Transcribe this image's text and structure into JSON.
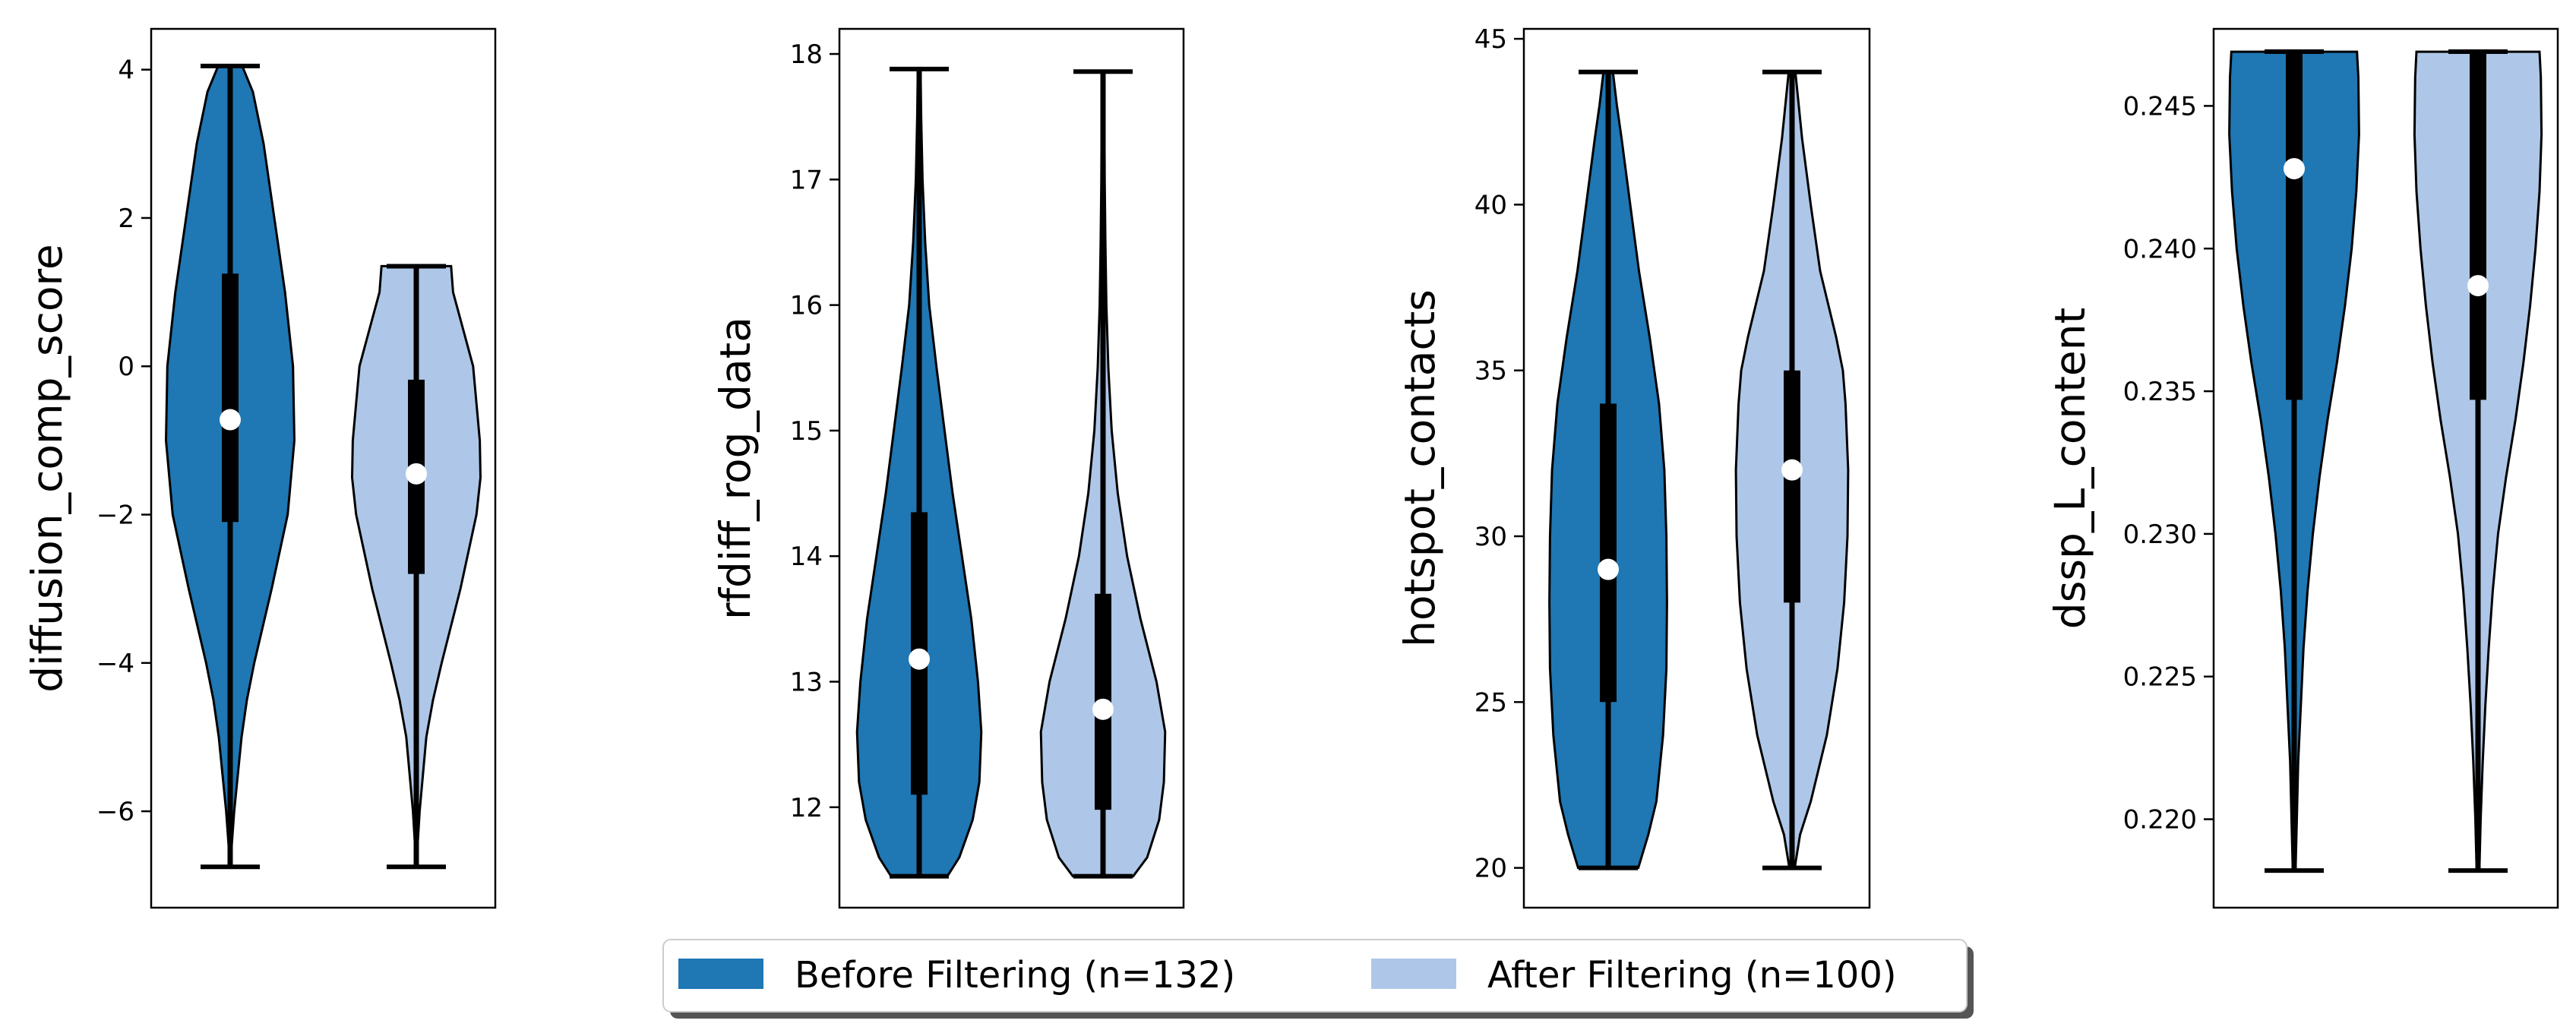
{
  "chart_data": {
    "type": "violin",
    "series_styles": [
      {
        "label": "Before Filtering (n=132)",
        "color": "#1f77b4"
      },
      {
        "label": "After Filtering (n=100)",
        "color": "#aec7e8"
      }
    ],
    "legend": {
      "placement": "bottom-center",
      "entries": [
        "Before Filtering (n=132)",
        "After Filtering (n=100)"
      ]
    },
    "panels": [
      {
        "ylabel": "diffusion_comp_score",
        "ylim": [
          -7.3,
          4.55
        ],
        "yticks": [
          4,
          2,
          0,
          -2,
          -4,
          -6
        ],
        "tick_labels": [
          "4",
          "2",
          "0",
          "−2",
          "−4",
          "−6"
        ],
        "violins": [
          {
            "min": -6.75,
            "max": 4.05,
            "q1": -2.1,
            "q3": 1.25,
            "median": -0.72,
            "profile": [
              [
                -6.75,
                0.0
              ],
              [
                -6.0,
                0.06
              ],
              [
                -5.0,
                0.17
              ],
              [
                -4.5,
                0.25
              ],
              [
                -4.0,
                0.36
              ],
              [
                -3.0,
                0.62
              ],
              [
                -2.0,
                0.86
              ],
              [
                -1.0,
                0.96
              ],
              [
                0.0,
                0.94
              ],
              [
                1.0,
                0.82
              ],
              [
                2.0,
                0.66
              ],
              [
                3.0,
                0.5
              ],
              [
                3.7,
                0.34
              ],
              [
                4.05,
                0.18
              ]
            ]
          },
          {
            "min": -6.75,
            "max": 1.35,
            "q1": -2.8,
            "q3": -0.18,
            "median": -1.45,
            "profile": [
              [
                -6.75,
                0.0
              ],
              [
                -6.0,
                0.05
              ],
              [
                -5.0,
                0.15
              ],
              [
                -4.5,
                0.25
              ],
              [
                -4.0,
                0.38
              ],
              [
                -3.0,
                0.66
              ],
              [
                -2.0,
                0.9
              ],
              [
                -1.5,
                0.96
              ],
              [
                -1.0,
                0.95
              ],
              [
                0.0,
                0.85
              ],
              [
                0.5,
                0.7
              ],
              [
                1.0,
                0.55
              ],
              [
                1.35,
                0.52
              ]
            ]
          }
        ]
      },
      {
        "ylabel": "rfdiff_rog_data",
        "ylim": [
          11.2,
          18.2
        ],
        "yticks": [
          18,
          17,
          16,
          15,
          14,
          13,
          12
        ],
        "tick_labels": [
          "18",
          "17",
          "16",
          "15",
          "14",
          "13",
          "12"
        ],
        "violins": [
          {
            "min": 11.45,
            "max": 17.88,
            "q1": 12.1,
            "q3": 14.35,
            "median": 13.18,
            "profile": [
              [
                11.45,
                0.42
              ],
              [
                11.6,
                0.6
              ],
              [
                11.9,
                0.8
              ],
              [
                12.2,
                0.9
              ],
              [
                12.6,
                0.93
              ],
              [
                13.0,
                0.88
              ],
              [
                13.5,
                0.78
              ],
              [
                14.0,
                0.64
              ],
              [
                14.5,
                0.5
              ],
              [
                15.0,
                0.38
              ],
              [
                15.5,
                0.26
              ],
              [
                16.0,
                0.15
              ],
              [
                16.5,
                0.09
              ],
              [
                17.0,
                0.05
              ],
              [
                17.5,
                0.03
              ],
              [
                17.88,
                0.02
              ]
            ]
          },
          {
            "min": 11.45,
            "max": 17.86,
            "q1": 11.98,
            "q3": 13.7,
            "median": 12.78,
            "profile": [
              [
                11.45,
                0.45
              ],
              [
                11.6,
                0.66
              ],
              [
                11.9,
                0.84
              ],
              [
                12.2,
                0.91
              ],
              [
                12.6,
                0.93
              ],
              [
                13.0,
                0.8
              ],
              [
                13.5,
                0.56
              ],
              [
                14.0,
                0.36
              ],
              [
                14.5,
                0.22
              ],
              [
                15.0,
                0.13
              ],
              [
                15.5,
                0.08
              ],
              [
                16.0,
                0.05
              ],
              [
                16.5,
                0.035
              ],
              [
                17.0,
                0.025
              ],
              [
                17.5,
                0.02
              ],
              [
                17.86,
                0.015
              ]
            ]
          }
        ]
      },
      {
        "ylabel": "hotspot_contacts",
        "ylim": [
          18.8,
          45.3
        ],
        "yticks": [
          45,
          40,
          35,
          30,
          25,
          20
        ],
        "tick_labels": [
          "45",
          "40",
          "35",
          "30",
          "25",
          "20"
        ],
        "violins": [
          {
            "min": 20,
            "max": 44,
            "q1": 25,
            "q3": 34,
            "median": 29,
            "profile": [
              [
                20,
                0.45
              ],
              [
                21,
                0.6
              ],
              [
                22,
                0.72
              ],
              [
                24,
                0.82
              ],
              [
                26,
                0.87
              ],
              [
                28,
                0.88
              ],
              [
                30,
                0.87
              ],
              [
                32,
                0.84
              ],
              [
                34,
                0.76
              ],
              [
                36,
                0.62
              ],
              [
                38,
                0.46
              ],
              [
                40,
                0.33
              ],
              [
                42,
                0.2
              ],
              [
                43,
                0.13
              ],
              [
                44,
                0.07
              ]
            ]
          },
          {
            "min": 20,
            "max": 44,
            "q1": 28,
            "q3": 35,
            "median": 32,
            "profile": [
              [
                20,
                0.04
              ],
              [
                21,
                0.12
              ],
              [
                22,
                0.28
              ],
              [
                24,
                0.52
              ],
              [
                26,
                0.68
              ],
              [
                28,
                0.78
              ],
              [
                30,
                0.83
              ],
              [
                32,
                0.84
              ],
              [
                34,
                0.8
              ],
              [
                35,
                0.76
              ],
              [
                36,
                0.66
              ],
              [
                38,
                0.42
              ],
              [
                40,
                0.28
              ],
              [
                42,
                0.15
              ],
              [
                44,
                0.05
              ]
            ]
          }
        ]
      },
      {
        "ylabel": "dssp_L_content",
        "ylim": [
          0.2169,
          0.2477
        ],
        "yticks": [
          0.245,
          0.24,
          0.235,
          0.23,
          0.225,
          0.22
        ],
        "tick_labels": [
          "0.245",
          "0.240",
          "0.235",
          "0.230",
          "0.225",
          "0.220"
        ],
        "violins": [
          {
            "min": 0.2182,
            "max": 0.2469,
            "q1": 0.2347,
            "q3": 0.2469,
            "median": 0.2428,
            "profile": [
              [
                0.2182,
                0.02
              ],
              [
                0.22,
                0.04
              ],
              [
                0.222,
                0.06
              ],
              [
                0.224,
                0.1
              ],
              [
                0.226,
                0.14
              ],
              [
                0.228,
                0.2
              ],
              [
                0.23,
                0.28
              ],
              [
                0.232,
                0.38
              ],
              [
                0.234,
                0.5
              ],
              [
                0.236,
                0.64
              ],
              [
                0.238,
                0.76
              ],
              [
                0.24,
                0.86
              ],
              [
                0.242,
                0.93
              ],
              [
                0.244,
                0.97
              ],
              [
                0.246,
                0.96
              ],
              [
                0.2469,
                0.94
              ]
            ]
          },
          {
            "min": 0.2182,
            "max": 0.2469,
            "q1": 0.2347,
            "q3": 0.2469,
            "median": 0.2387,
            "profile": [
              [
                0.2182,
                0.02
              ],
              [
                0.22,
                0.04
              ],
              [
                0.222,
                0.07
              ],
              [
                0.224,
                0.11
              ],
              [
                0.226,
                0.16
              ],
              [
                0.228,
                0.22
              ],
              [
                0.23,
                0.3
              ],
              [
                0.232,
                0.42
              ],
              [
                0.234,
                0.56
              ],
              [
                0.236,
                0.68
              ],
              [
                0.238,
                0.78
              ],
              [
                0.24,
                0.86
              ],
              [
                0.242,
                0.92
              ],
              [
                0.244,
                0.95
              ],
              [
                0.246,
                0.94
              ],
              [
                0.2469,
                0.92
              ]
            ]
          }
        ]
      }
    ]
  }
}
